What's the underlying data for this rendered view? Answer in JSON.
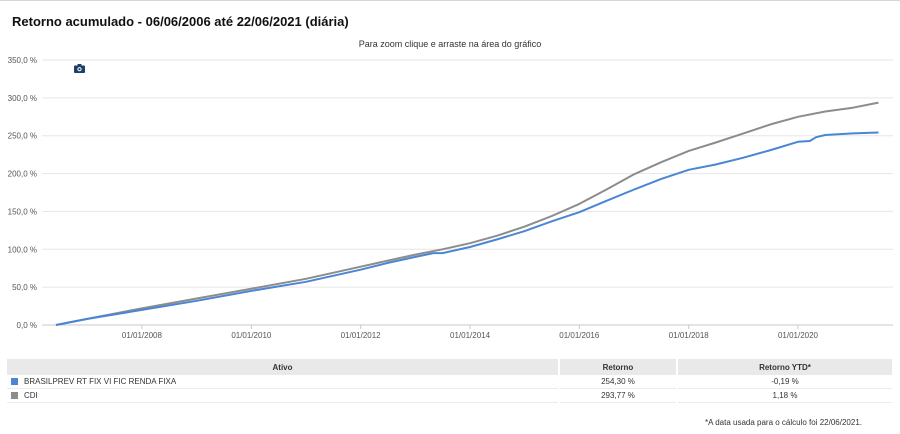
{
  "title": "Retorno acumulado - 06/06/2006 até 22/06/2021 (diária)",
  "zoom_hint": "Para zoom clique e arraste na área do gráfico",
  "camera_icon": "camera-icon",
  "chart_data": {
    "type": "line",
    "x_tick_labels": [
      "01/01/2008",
      "01/01/2010",
      "01/01/2012",
      "01/01/2014",
      "01/01/2016",
      "01/01/2018",
      "01/01/2020"
    ],
    "y_tick_labels": [
      "0,0 %",
      "50,0 %",
      "100,0 %",
      "150,0 %",
      "200,0 %",
      "250,0 %",
      "300,0 %",
      "350,0 %"
    ],
    "ylim": [
      0,
      350
    ],
    "grid": true,
    "series": [
      {
        "name": "BRASILPREV RT FIX VI FIC RENDA FIXA",
        "color": "#4a86d4",
        "x": [
          "2006-06-06",
          "2007-01-01",
          "2008-01-01",
          "2009-01-01",
          "2010-01-01",
          "2011-01-01",
          "2012-01-01",
          "2012-07-01",
          "2013-01-01",
          "2013-05-01",
          "2013-07-01",
          "2014-01-01",
          "2014-07-01",
          "2015-01-01",
          "2015-07-01",
          "2016-01-01",
          "2016-07-01",
          "2017-01-01",
          "2017-07-01",
          "2018-01-01",
          "2018-07-01",
          "2019-01-01",
          "2019-07-01",
          "2020-01-01",
          "2020-03-20",
          "2020-05-01",
          "2020-07-01",
          "2021-01-01",
          "2021-06-22"
        ],
        "values": [
          0,
          8,
          20,
          32,
          45,
          57,
          73,
          82,
          90,
          95,
          95,
          103,
          113,
          124,
          137,
          149,
          164,
          179,
          193,
          205,
          212,
          221,
          231,
          242,
          243,
          248,
          251,
          253,
          254.3
        ]
      },
      {
        "name": "CDI",
        "color": "#8c8c8c",
        "x": [
          "2006-06-06",
          "2007-01-01",
          "2008-01-01",
          "2009-01-01",
          "2010-01-01",
          "2011-01-01",
          "2012-01-01",
          "2012-07-01",
          "2013-01-01",
          "2013-07-01",
          "2014-01-01",
          "2014-07-01",
          "2015-01-01",
          "2015-07-01",
          "2016-01-01",
          "2016-07-01",
          "2017-01-01",
          "2017-07-01",
          "2018-01-01",
          "2018-07-01",
          "2019-01-01",
          "2019-07-01",
          "2020-01-01",
          "2020-07-01",
          "2021-01-01",
          "2021-06-22"
        ],
        "values": [
          0,
          8,
          22,
          35,
          48,
          61,
          77,
          85,
          93,
          100,
          108,
          118,
          130,
          144,
          160,
          179,
          199,
          215,
          230,
          241,
          253,
          265,
          275,
          282,
          287,
          293.77
        ]
      }
    ]
  },
  "table": {
    "headers": [
      "Ativo",
      "Retorno",
      "Retorno YTD*"
    ],
    "rows": [
      {
        "color": "#4a86d4",
        "name": "BRASILPREV RT FIX VI FIC RENDA FIXA",
        "retorno": "254,30 %",
        "ytd": "-0,19 %"
      },
      {
        "color": "#8c8c8c",
        "name": "CDI",
        "retorno": "293,77 %",
        "ytd": "1,18 %"
      }
    ]
  },
  "footnote": "*A data usada para o cálculo foi 22/06/2021."
}
